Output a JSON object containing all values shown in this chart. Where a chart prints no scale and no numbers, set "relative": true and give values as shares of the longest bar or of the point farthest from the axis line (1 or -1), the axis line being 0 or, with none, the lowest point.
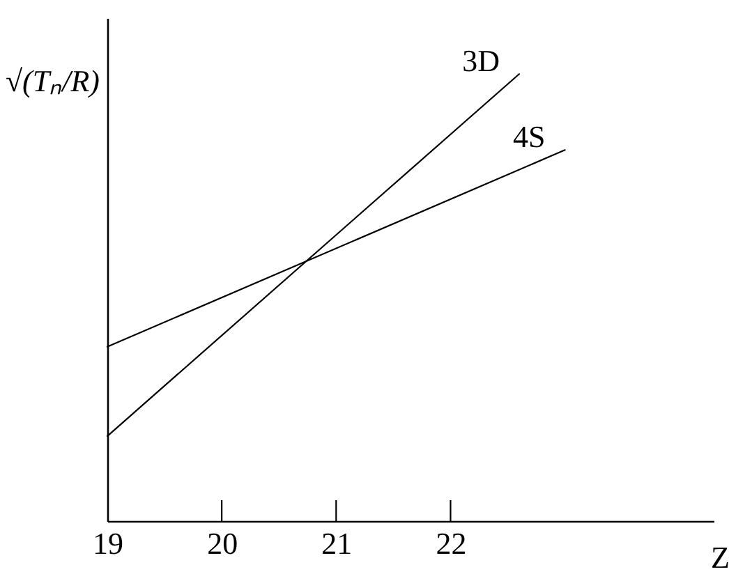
{
  "chart_data": {
    "type": "line",
    "xlabel": "Z",
    "ylabel": "√(Tₙ/R)",
    "relative": true,
    "xlim": [
      19,
      24.3
    ],
    "xticks": [
      19,
      20,
      21,
      22
    ],
    "grid": false,
    "legend": false,
    "marker": "none",
    "line_style": "solid",
    "series": [
      {
        "name": "3D",
        "color": "#000000",
        "x": [
          19,
          22.6
        ],
        "values": [
          0.19,
          1
        ]
      },
      {
        "name": "4S",
        "color": "#000000",
        "x": [
          19,
          23.0
        ],
        "values": [
          0.39,
          0.83
        ]
      }
    ]
  }
}
